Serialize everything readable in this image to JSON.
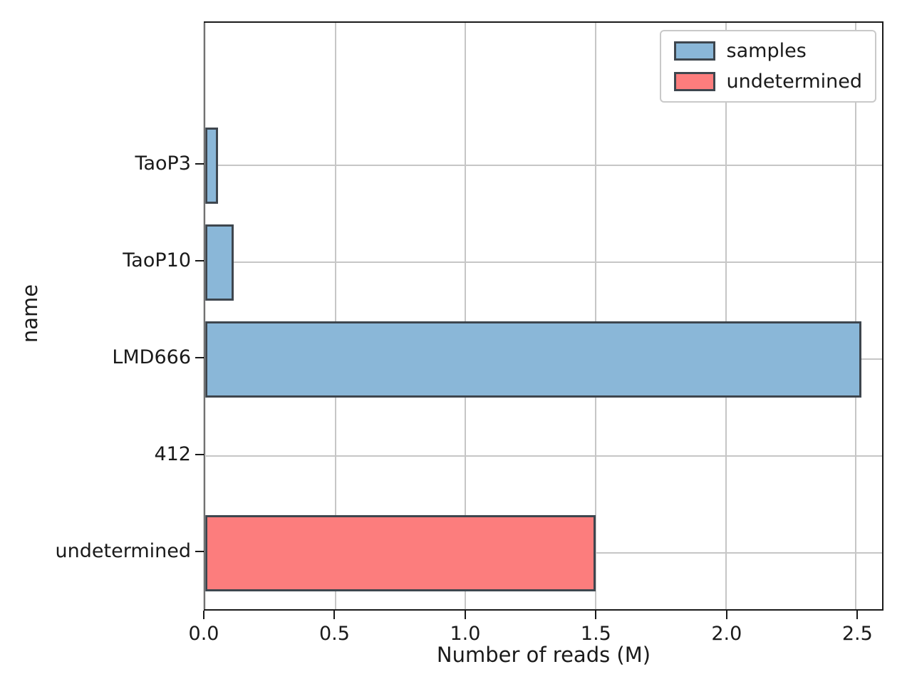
{
  "chart_data": {
    "type": "bar",
    "orientation": "horizontal",
    "title": "",
    "xlabel": "Number of reads (M)",
    "ylabel": "name",
    "xlim": [
      0,
      2.6
    ],
    "xticks": [
      0.0,
      0.5,
      1.0,
      1.5,
      2.0,
      2.5
    ],
    "grid": true,
    "legend_position": "upper right",
    "categories": [
      "TaoP3",
      "TaoP10",
      "LMD666",
      "412",
      "undetermined"
    ],
    "bars": [
      {
        "category": "TaoP3",
        "value": 0.05,
        "series": "samples"
      },
      {
        "category": "TaoP10",
        "value": 0.11,
        "series": "samples"
      },
      {
        "category": "LMD666",
        "value": 2.52,
        "series": "samples"
      },
      {
        "category": "412",
        "value": 0.0,
        "series": "samples"
      },
      {
        "category": "undetermined",
        "value": 1.5,
        "series": "undetermined"
      }
    ],
    "legend": [
      {
        "label": "samples",
        "color": "#8ab7d8"
      },
      {
        "label": "undetermined",
        "color": "#fc7d7d"
      }
    ],
    "colors": {
      "samples": "#8ab7d8",
      "undetermined": "#fc7d7d",
      "edge": "#3e464e",
      "grid": "#c6c6c6",
      "spine": "#1a1a1a"
    }
  }
}
